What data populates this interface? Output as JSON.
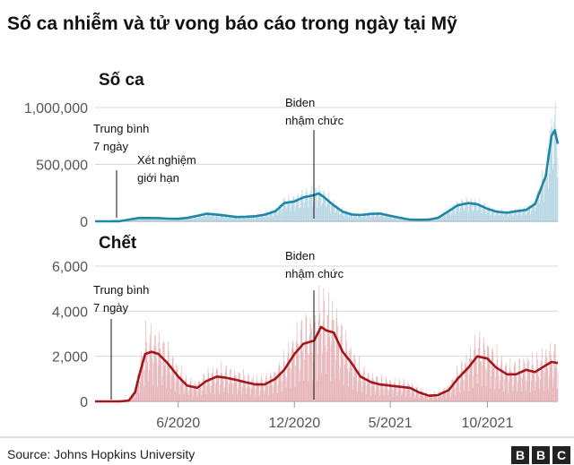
{
  "title": "Số ca nhiễm và tử vong báo cáo trong ngày tại Mỹ",
  "source": "Source: Johns Hopkins University",
  "logo": [
    "B",
    "B",
    "C"
  ],
  "x_ticks": [
    "6/2020",
    "12/2020",
    "5/2021",
    "10/2021"
  ],
  "colors": {
    "cases_line": "#1f87a6",
    "cases_bar": "#a9cfdf",
    "cases_label": "#29a6cc",
    "deaths_line": "#a3161a",
    "deaths_bar": "#e2a7ab",
    "deaths_label": "#a3161a",
    "grid": "#d9d9d9"
  },
  "chart_data": [
    {
      "type": "area",
      "panel_title": "Số ca",
      "y_ticks": [
        "1,000,000",
        "500,000",
        "0"
      ],
      "ylim": [
        0,
        1000000
      ],
      "grid": true,
      "annotations": {
        "average": "Trung bình\n7 ngày",
        "testing": "Xét nghiệm\ngiới hạn",
        "biden": "Biden\nnhậm chức"
      },
      "x_dates": [
        "2020-01-22",
        "2020-02-15",
        "2020-03-01",
        "2020-03-15",
        "2020-04-01",
        "2020-04-15",
        "2020-05-01",
        "2020-05-15",
        "2020-06-01",
        "2020-06-15",
        "2020-07-01",
        "2020-07-15",
        "2020-08-01",
        "2020-08-15",
        "2020-09-01",
        "2020-09-15",
        "2020-10-01",
        "2020-10-15",
        "2020-11-01",
        "2020-11-15",
        "2020-12-01",
        "2020-12-15",
        "2021-01-01",
        "2021-01-08",
        "2021-01-15",
        "2021-02-01",
        "2021-02-15",
        "2021-03-01",
        "2021-03-15",
        "2021-04-01",
        "2021-04-15",
        "2021-05-01",
        "2021-05-15",
        "2021-06-01",
        "2021-06-15",
        "2021-07-01",
        "2021-07-15",
        "2021-08-01",
        "2021-08-15",
        "2021-09-01",
        "2021-09-15",
        "2021-10-01",
        "2021-10-15",
        "2021-11-01",
        "2021-11-15",
        "2021-12-01",
        "2021-12-15",
        "2022-01-01",
        "2022-01-10",
        "2022-01-15",
        "2022-01-20"
      ],
      "series": [
        {
          "role": "7-day average",
          "values": [
            0,
            0,
            1000,
            15000,
            30000,
            29000,
            28000,
            24000,
            22000,
            30000,
            48000,
            66000,
            58000,
            50000,
            38000,
            40000,
            45000,
            58000,
            88000,
            160000,
            175000,
            210000,
            230000,
            245000,
            220000,
            140000,
            85000,
            60000,
            55000,
            65000,
            68000,
            48000,
            32000,
            15000,
            13000,
            15000,
            30000,
            90000,
            140000,
            160000,
            150000,
            110000,
            85000,
            75000,
            88000,
            100000,
            150000,
            400000,
            750000,
            800000,
            680000
          ]
        }
      ]
    },
    {
      "type": "area",
      "panel_title": "Chết",
      "y_ticks": [
        "6,000",
        "4,000",
        "2,000",
        "0"
      ],
      "ylim": [
        0,
        6000
      ],
      "grid": true,
      "annotations": {
        "average": "Trung bình\n7 ngày",
        "biden": "Biden\nnhậm chức"
      },
      "x_dates": [
        "2020-01-22",
        "2020-02-15",
        "2020-03-01",
        "2020-03-15",
        "2020-03-25",
        "2020-04-01",
        "2020-04-10",
        "2020-04-20",
        "2020-05-01",
        "2020-05-15",
        "2020-06-01",
        "2020-06-15",
        "2020-07-01",
        "2020-07-15",
        "2020-08-01",
        "2020-08-15",
        "2020-09-01",
        "2020-09-15",
        "2020-10-01",
        "2020-10-15",
        "2020-11-01",
        "2020-11-15",
        "2020-12-01",
        "2020-12-15",
        "2021-01-01",
        "2021-01-12",
        "2021-01-20",
        "2021-02-01",
        "2021-02-15",
        "2021-03-01",
        "2021-03-15",
        "2021-04-01",
        "2021-04-15",
        "2021-05-01",
        "2021-05-15",
        "2021-06-01",
        "2021-06-15",
        "2021-07-01",
        "2021-07-15",
        "2021-08-01",
        "2021-08-15",
        "2021-09-01",
        "2021-09-15",
        "2021-10-01",
        "2021-10-15",
        "2021-11-01",
        "2021-11-15",
        "2021-12-01",
        "2021-12-15",
        "2022-01-01",
        "2022-01-10",
        "2022-01-20"
      ],
      "series": [
        {
          "role": "7-day average",
          "values": [
            0,
            0,
            0,
            30,
            400,
            1200,
            2100,
            2200,
            2100,
            1700,
            1100,
            700,
            600,
            900,
            1100,
            1050,
            950,
            850,
            750,
            750,
            1000,
            1400,
            2100,
            2550,
            2700,
            3300,
            3150,
            3050,
            2200,
            1700,
            1100,
            850,
            750,
            700,
            650,
            600,
            400,
            250,
            280,
            500,
            1000,
            1500,
            2000,
            1900,
            1500,
            1200,
            1200,
            1400,
            1300,
            1600,
            1750,
            1700
          ]
        }
      ]
    }
  ]
}
